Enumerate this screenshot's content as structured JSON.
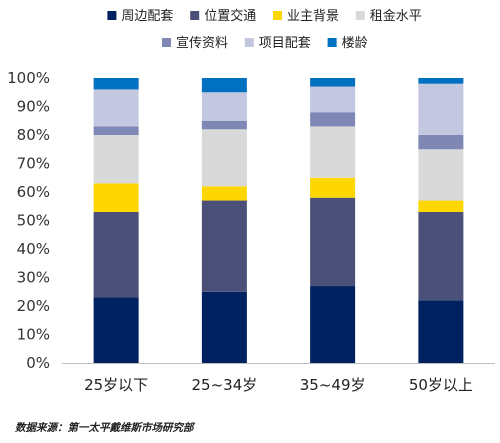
{
  "chart_data": {
    "type": "bar",
    "stacked": true,
    "categories": [
      "25岁以下",
      "25~34岁",
      "35~49岁",
      "50岁以上"
    ],
    "series": [
      {
        "name": "周边配套",
        "color": "#00215f",
        "values": [
          23,
          25,
          27,
          22
        ]
      },
      {
        "name": "位置交通",
        "color": "#4a5078",
        "values": [
          30,
          32,
          31,
          31
        ]
      },
      {
        "name": "业主背景",
        "color": "#ffd700",
        "values": [
          10,
          5,
          7,
          4
        ]
      },
      {
        "name": "租金水平",
        "color": "#d9d9d9",
        "values": [
          17,
          20,
          18,
          18
        ]
      },
      {
        "name": "宣传资料",
        "color": "#7f88b4",
        "values": [
          3,
          3,
          5,
          5
        ]
      },
      {
        "name": "项目配套",
        "color": "#c3c8e0",
        "values": [
          13,
          10,
          9,
          18
        ]
      },
      {
        "name": "楼龄",
        "color": "#0070c0",
        "values": [
          4,
          5,
          3,
          2
        ]
      }
    ],
    "ylim": [
      0,
      100
    ],
    "yticks": [
      "0%",
      "10%",
      "20%",
      "30%",
      "40%",
      "50%",
      "60%",
      "70%",
      "80%",
      "90%",
      "100%"
    ],
    "legend_position": "top",
    "grid": false
  },
  "source_note": "数据来源：第一太平戴维斯市场研究部"
}
